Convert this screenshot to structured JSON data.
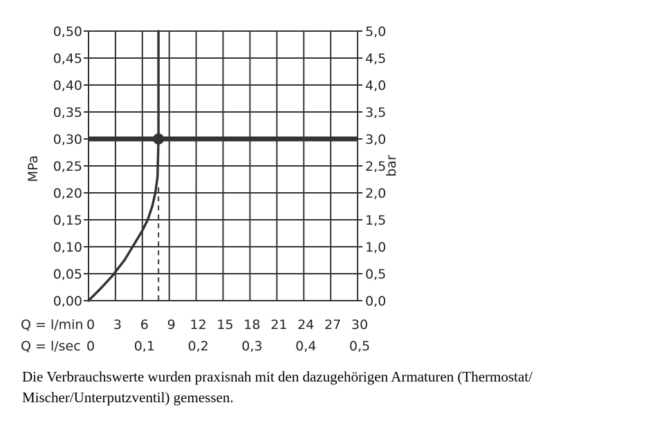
{
  "chart_data": {
    "type": "line",
    "x_rows": [
      {
        "label": "Q = l/min",
        "ticks": [
          "0",
          "3",
          "6",
          "9",
          "12",
          "15",
          "18",
          "21",
          "24",
          "27",
          "30"
        ]
      },
      {
        "label": "Q = l/sec",
        "ticks": [
          "0",
          "0,1",
          "0,2",
          "0,3",
          "0,4",
          "0,5"
        ]
      }
    ],
    "xlim": [
      0,
      30
    ],
    "y_left": {
      "label": "MPa",
      "ticks": [
        "0,00",
        "0,05",
        "0,10",
        "0,15",
        "0,20",
        "0,25",
        "0,30",
        "0,35",
        "0,40",
        "0,45",
        "0,50"
      ],
      "ylim": [
        0,
        0.5
      ]
    },
    "y_right": {
      "label": "bar",
      "ticks": [
        "0,0",
        "0,5",
        "1,0",
        "1,5",
        "2,0",
        "2,5",
        "3,0",
        "3,5",
        "4,0",
        "4,5",
        "5,0"
      ],
      "ylim": [
        0,
        5
      ]
    },
    "grid": true,
    "series": [
      {
        "x": [
          0,
          1.2,
          2.6,
          4.0,
          5.1,
          6.0,
          6.6,
          7.1,
          7.45,
          7.7,
          7.8,
          7.8
        ],
        "y": [
          0,
          0.02,
          0.045,
          0.075,
          0.105,
          0.13,
          0.15,
          0.175,
          0.2,
          0.23,
          0.3,
          0.5
        ],
        "color": "#333333"
      }
    ],
    "reference_line": {
      "y": 0.3
    },
    "operating_point": {
      "x": 7.8,
      "y": 0.3
    },
    "dashed_drop": {
      "x": 7.8,
      "from_y": 0.21,
      "to_y": 0
    }
  },
  "caption": {
    "line1": "Die Verbrauchswerte wurden praxisnah mit den dazugehörigen Armaturen (Thermostat/",
    "line2": "Mischer/Unterputzventil) gemessen."
  }
}
